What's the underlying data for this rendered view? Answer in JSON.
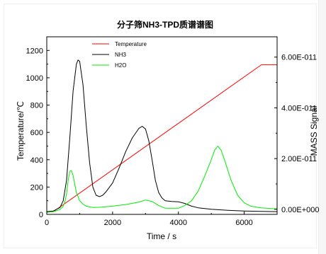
{
  "chart_data": {
    "type": "line",
    "title": "分子筛NH3-TPD质谱谱图",
    "xlabel": "Time / s",
    "ylabel_left": "Temperature/℃",
    "ylabel_right": "MASS Signal",
    "xlim": [
      0,
      7000
    ],
    "ylim_left": [
      0,
      1300
    ],
    "ylim_right": [
      -0.2,
      6.8
    ],
    "x_ticks": [
      0,
      2000,
      4000,
      6000
    ],
    "x_tick_labels": [
      "0",
      "2000",
      "4000",
      "6000"
    ],
    "y_left_ticks": [
      0,
      200,
      400,
      600,
      800,
      1000,
      1200
    ],
    "y_left_tick_labels": [
      "0",
      "200",
      "400",
      "600",
      "800",
      "1000",
      "1200"
    ],
    "y_right_ticks": [
      0,
      2,
      4,
      6
    ],
    "y_right_tick_labels": [
      "0.00E+000",
      "2.00E-011",
      "4.00E-011",
      "6.00E-011"
    ],
    "legend_position": "top-left",
    "grid": false,
    "series": [
      {
        "name": "Temperature",
        "axis": "left",
        "color": "#ff0000",
        "x": [
          0,
          200,
          6520,
          7000
        ],
        "y": [
          20,
          20,
          1095,
          1095
        ]
      },
      {
        "name": "NH3",
        "axis": "left",
        "color": "#000000",
        "x": [
          0,
          200,
          400,
          500,
          600,
          700,
          800,
          900,
          950,
          1000,
          1100,
          1200,
          1300,
          1400,
          1500,
          1600,
          1700,
          1800,
          2000,
          2200,
          2400,
          2600,
          2800,
          2900,
          3000,
          3100,
          3200,
          3300,
          3400,
          3500,
          3600,
          3800,
          4000,
          4200,
          4400,
          4600,
          5000,
          5500,
          6000,
          6500,
          7000
        ],
        "y": [
          20,
          25,
          50,
          100,
          250,
          560,
          900,
          1100,
          1130,
          1120,
          950,
          650,
          380,
          200,
          140,
          130,
          140,
          165,
          230,
          340,
          460,
          560,
          630,
          645,
          625,
          540,
          400,
          250,
          160,
          120,
          100,
          95,
          92,
          80,
          60,
          48,
          38,
          30,
          25,
          22,
          20
        ]
      },
      {
        "name": "H2O",
        "axis": "left",
        "color": "#00ee00",
        "x": [
          0,
          200,
          400,
          500,
          550,
          600,
          650,
          700,
          750,
          800,
          850,
          900,
          1000,
          1100,
          1200,
          1400,
          1600,
          2000,
          2400,
          2800,
          3000,
          3200,
          3400,
          3600,
          4000,
          4200,
          4400,
          4600,
          4800,
          5000,
          5100,
          5200,
          5300,
          5400,
          5600,
          5800,
          6000,
          6200,
          6500,
          7000
        ],
        "y": [
          15,
          20,
          35,
          60,
          90,
          150,
          250,
          315,
          320,
          285,
          220,
          160,
          100,
          75,
          60,
          50,
          52,
          60,
          72,
          90,
          105,
          95,
          65,
          45,
          45,
          65,
          100,
          170,
          280,
          400,
          470,
          500,
          470,
          400,
          250,
          140,
          85,
          60,
          48,
          40
        ]
      }
    ]
  }
}
